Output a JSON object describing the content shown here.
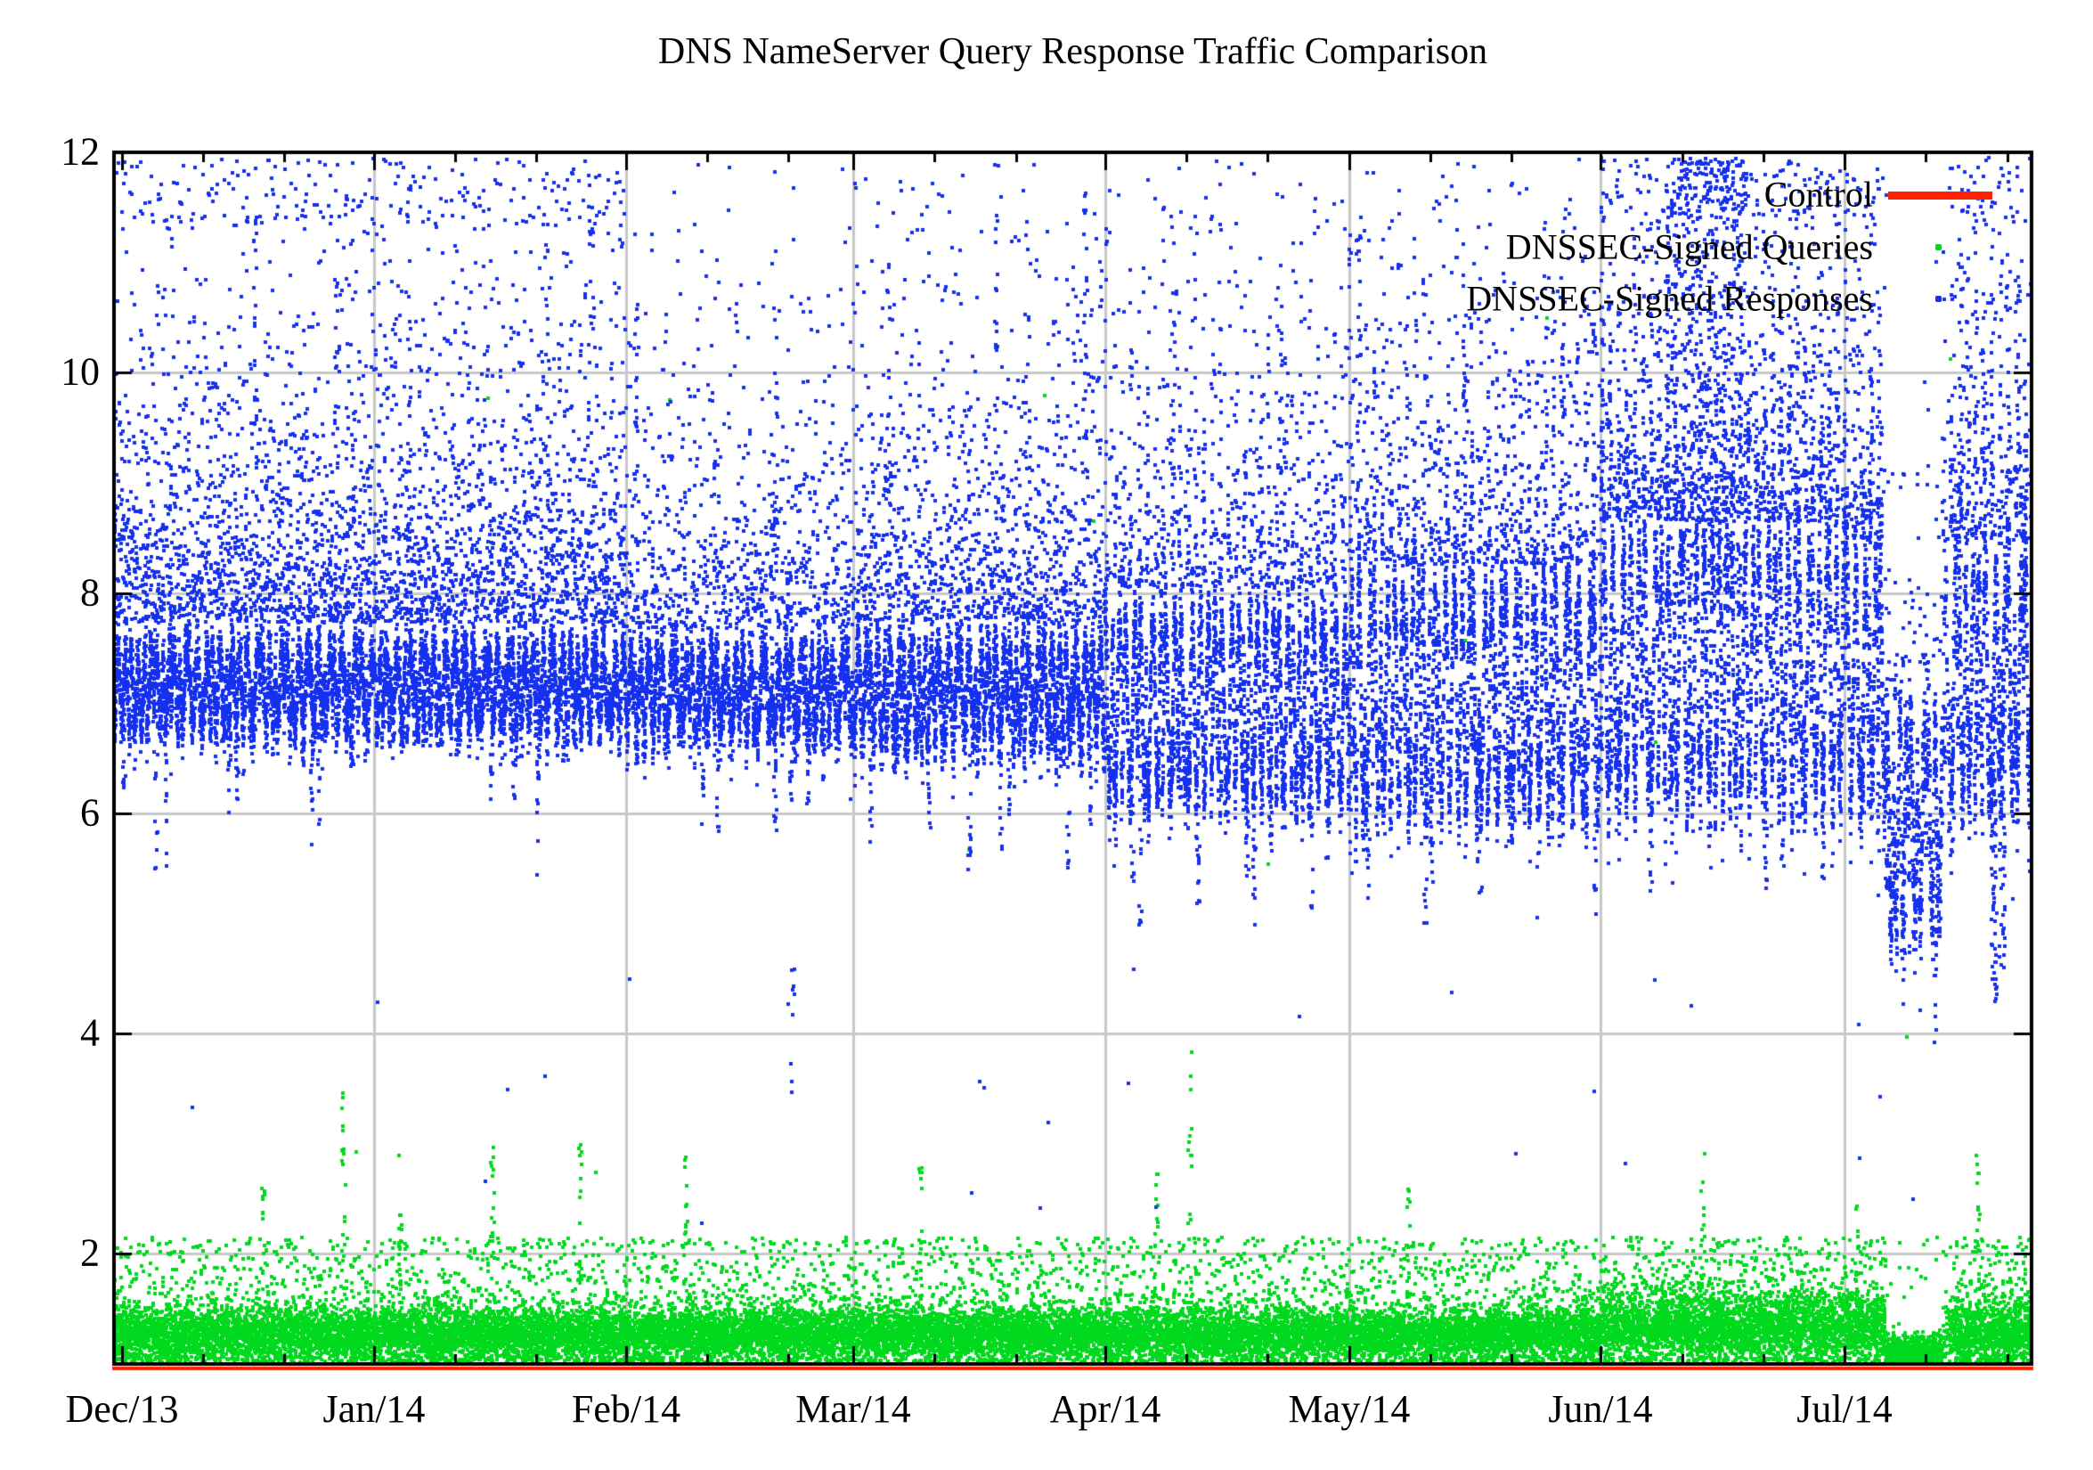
{
  "chart_data": {
    "type": "scatter",
    "title": "DNS NameServer Query Response Traffic Comparison",
    "background_color": "#ffffff",
    "border_color": "#000000",
    "grid_color": "#c8c8c8",
    "grid": true,
    "legend_position": "top-right-inside",
    "x_axis": {
      "kind": "time",
      "start_date": "2013-12-01",
      "end_date_approx": "2014-07-23",
      "tick_labels": [
        "Dec/13",
        "Jan/14",
        "Feb/14",
        "Mar/14",
        "Apr/14",
        "May/14",
        "Jun/14",
        "Jul/14"
      ],
      "month_lengths_days": [
        31,
        31,
        28,
        31,
        30,
        31,
        30,
        23
      ],
      "minor_tick_day_offsets": [
        10,
        20
      ]
    },
    "y_axis": {
      "min": 1,
      "max": 12,
      "major_ticks": [
        2,
        4,
        6,
        8,
        10,
        12
      ],
      "grid_ticks": [
        2,
        4,
        6,
        8,
        10
      ],
      "tick_labels": [
        "2",
        "4",
        "6",
        "8",
        "10",
        "12"
      ]
    },
    "legend": [
      {
        "label": "Control",
        "marker": "line",
        "color": "#ff2000"
      },
      {
        "label": "DNSSEC-Signed Queries",
        "marker": "point",
        "color": "#00d91e"
      },
      {
        "label": "DNSSEC-Signed Responses",
        "marker": "point",
        "color": "#1530ee"
      }
    ],
    "series": [
      {
        "name": "Control",
        "type": "line",
        "color": "#ff2000",
        "constant_value": 0.97,
        "note": "flat red line running along the bottom axis for the full time range"
      },
      {
        "name": "DNSSEC-Signed Queries",
        "type": "points",
        "color": "#00d91e",
        "points_per_day": 95,
        "band_periods": [
          {
            "from_day": -1,
            "to_day": 181,
            "center": 1.27,
            "sigma": 0.13,
            "tail_per_day": 8
          },
          {
            "from_day": 182,
            "to_day": 216,
            "center": 1.33,
            "sigma": 0.16,
            "tail_per_day": 10
          },
          {
            "from_day": 217,
            "to_day": 223,
            "center": 1.1,
            "sigma": 0.08,
            "tail_per_day": 2
          },
          {
            "from_day": 224,
            "to_day": 234,
            "center": 1.3,
            "sigma": 0.15,
            "tail_per_day": 9
          }
        ],
        "tail_range": [
          1.55,
          2.15
        ],
        "spike_days": [
          {
            "day": 17,
            "top": 2.6
          },
          {
            "day": 27,
            "top": 3.5
          },
          {
            "day": 34,
            "top": 2.9
          },
          {
            "day": 45,
            "top": 3.0
          },
          {
            "day": 56,
            "top": 3.0
          },
          {
            "day": 69,
            "top": 3.1
          },
          {
            "day": 98,
            "top": 2.9
          },
          {
            "day": 127,
            "top": 2.8
          },
          {
            "day": 131,
            "top": 3.9
          },
          {
            "day": 158,
            "top": 2.7
          },
          {
            "day": 194,
            "top": 3.1
          },
          {
            "day": 213,
            "top": 2.5
          },
          {
            "day": 228,
            "top": 2.9
          }
        ],
        "stray_points": 15,
        "stray_y_range": [
          2.4,
          10.8
        ]
      },
      {
        "name": "DNSSEC-Signed Responses",
        "type": "points",
        "color": "#1530ee",
        "points_per_day": 100,
        "band_periods": [
          {
            "from_day": -1,
            "to_day": 61,
            "center": 7.15,
            "amp": 0.33,
            "sigma": 0.16,
            "upper_factor": 1.2
          },
          {
            "from_day": 62,
            "to_day": 89,
            "center": 7.1,
            "amp": 0.33,
            "sigma": 0.16,
            "upper_factor": 0.7
          },
          {
            "from_day": 90,
            "to_day": 120,
            "center": 7.1,
            "amp": 0.4,
            "sigma": 0.18,
            "upper_factor": 0.9
          },
          {
            "from_day": 121,
            "to_day": 150,
            "center": 7.0,
            "amp": 0.8,
            "sigma": 0.2,
            "upper_factor": 0.7
          },
          {
            "from_day": 151,
            "to_day": 181,
            "center": 7.05,
            "amp": 0.95,
            "sigma": 0.22,
            "upper_factor": 0.8
          },
          {
            "from_day": 182,
            "to_day": 211,
            "center": 7.3,
            "amp": 1.1,
            "sigma": 0.28,
            "upper_factor": 1.2
          },
          {
            "from_day": 212,
            "to_day": 234,
            "center": 7.2,
            "amp": 1.0,
            "sigma": 0.28,
            "upper_factor": 1.1
          }
        ],
        "upper_points_per_day": 40,
        "upper_decay": 1.05,
        "downward_streak_probability": 0.38,
        "weekly_dip": {
          "start_day": 125,
          "interval": 7,
          "depth": 1.95
        },
        "dip_event": {
          "from_day": 217,
          "to_day": 223,
          "center": 5.9,
          "amp": 0.8,
          "sigma": 0.3
        },
        "deep_streak_days": [
          {
            "day": 82,
            "low": 3.3,
            "high": 4.7,
            "n": 10
          },
          {
            "day": 230,
            "low": 4.2,
            "high": 7.2,
            "n": 55
          },
          {
            "day": 231,
            "low": 4.4,
            "high": 7.4,
            "n": 55
          }
        ],
        "spike_window": {
          "from_day": 190,
          "to_day": 199,
          "top": 11.95
        },
        "up_streak_days": [
          {
            "day": 16,
            "top": 11.5
          },
          {
            "day": 26,
            "top": 11.0
          },
          {
            "day": 35,
            "top": 11.8
          },
          {
            "day": 52,
            "top": 11.2
          },
          {
            "day": 57,
            "top": 12.0
          },
          {
            "day": 63,
            "top": 11.6
          },
          {
            "day": 80,
            "top": 10.6
          },
          {
            "day": 94,
            "top": 11.0
          },
          {
            "day": 107,
            "top": 11.9
          },
          {
            "day": 111,
            "top": 11.5
          },
          {
            "day": 118,
            "top": 11.8
          },
          {
            "day": 129,
            "top": 11.5
          },
          {
            "day": 142,
            "top": 11.0
          },
          {
            "day": 152,
            "top": 11.7
          },
          {
            "day": 165,
            "top": 11.0
          },
          {
            "day": 177,
            "top": 11.5
          },
          {
            "day": 182,
            "top": 12.0
          },
          {
            "day": 205,
            "top": 11.5
          },
          {
            "day": 215,
            "top": 11.8
          },
          {
            "day": 226,
            "top": 11.5
          },
          {
            "day": 233,
            "top": 11.0
          }
        ],
        "outage_day": {
          "day": 224,
          "factor": 0.35
        },
        "stray_points": 26,
        "stray_y_range": [
          2.1,
          4.6
        ]
      }
    ]
  }
}
